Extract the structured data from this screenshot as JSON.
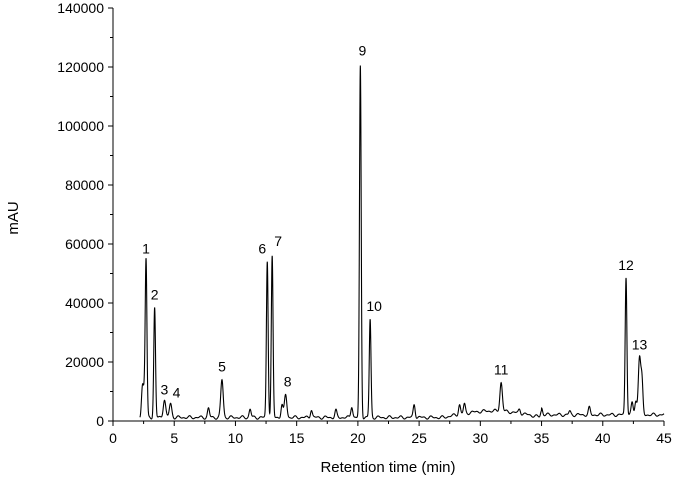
{
  "chart_data": {
    "type": "line",
    "title": "",
    "xlabel": "Retention time (min)",
    "ylabel": "mAU",
    "xlim": [
      0,
      45
    ],
    "ylim": [
      0,
      140000
    ],
    "x_ticks": [
      0,
      5,
      10,
      15,
      20,
      25,
      30,
      35,
      40,
      45
    ],
    "y_ticks": [
      0,
      20000,
      40000,
      60000,
      80000,
      100000,
      120000,
      140000
    ],
    "grid": false,
    "legend": "none",
    "line_color": "#000000",
    "peaks": [
      {
        "label": "1",
        "x": 2.7,
        "y": 54000
      },
      {
        "label": "2",
        "x": 3.4,
        "y": 38500
      },
      {
        "label": "3",
        "x": 4.2,
        "y": 7000
      },
      {
        "label": "4",
        "x": 4.7,
        "y": 6000
      },
      {
        "label": "5",
        "x": 8.9,
        "y": 14000
      },
      {
        "label": "6",
        "x": 12.6,
        "y": 54000
      },
      {
        "label": "7",
        "x": 13.0,
        "y": 56000
      },
      {
        "label": "8",
        "x": 14.1,
        "y": 9000
      },
      {
        "label": "9",
        "x": 20.2,
        "y": 120500
      },
      {
        "label": "10",
        "x": 21.0,
        "y": 34500
      },
      {
        "label": "11",
        "x": 31.7,
        "y": 13000
      },
      {
        "label": "12",
        "x": 41.9,
        "y": 48500
      },
      {
        "label": "13",
        "x": 43.0,
        "y": 21500
      }
    ],
    "minor_peaks": [
      {
        "x": 2.4,
        "y": 11000
      },
      {
        "x": 2.55,
        "y": 8000
      },
      {
        "x": 7.8,
        "y": 4500
      },
      {
        "x": 11.2,
        "y": 4000
      },
      {
        "x": 13.8,
        "y": 5500
      },
      {
        "x": 16.2,
        "y": 3500
      },
      {
        "x": 18.2,
        "y": 4000
      },
      {
        "x": 19.5,
        "y": 4500
      },
      {
        "x": 24.6,
        "y": 5500
      },
      {
        "x": 28.3,
        "y": 5500
      },
      {
        "x": 28.7,
        "y": 6000
      },
      {
        "x": 33.2,
        "y": 4000
      },
      {
        "x": 35.0,
        "y": 3500
      },
      {
        "x": 37.3,
        "y": 3500
      },
      {
        "x": 38.9,
        "y": 5000
      },
      {
        "x": 42.4,
        "y": 6500
      },
      {
        "x": 42.7,
        "y": 6500
      },
      {
        "x": 43.2,
        "y": 13500
      }
    ]
  }
}
